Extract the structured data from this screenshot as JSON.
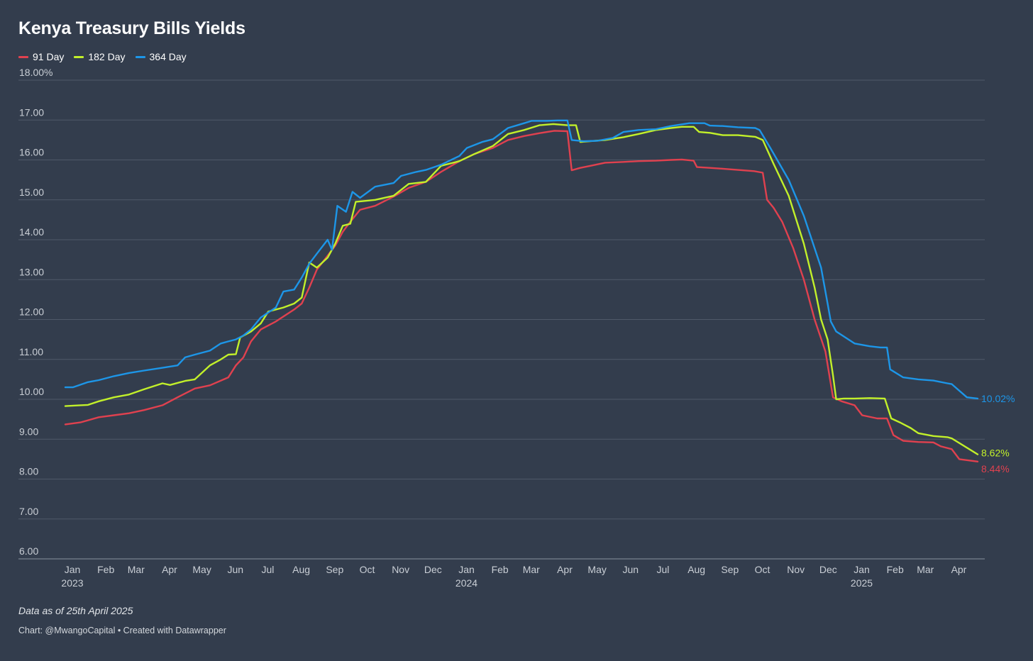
{
  "title": "Kenya Treasury Bills Yields",
  "note": "Data as of 25th April 2025",
  "credit": "Chart: @MwangoCapital • Created with Datawrapper",
  "chart_data": {
    "type": "line",
    "title": "Kenya Treasury Bills Yields",
    "xlabel": "",
    "ylabel": "",
    "ylim": [
      6,
      18
    ],
    "xlim": [
      "2023-01-01",
      "2025-04-25"
    ],
    "y_ticks": [
      "6.00",
      "7.00",
      "8.00",
      "9.00",
      "10.00",
      "11.00",
      "12.00",
      "13.00",
      "14.00",
      "15.00",
      "16.00",
      "17.00",
      "18.00%"
    ],
    "x_ticks": [
      {
        "date": "2023-01-01",
        "label": "Jan",
        "year": "2023"
      },
      {
        "date": "2023-02-01",
        "label": "Feb"
      },
      {
        "date": "2023-03-01",
        "label": "Mar"
      },
      {
        "date": "2023-04-01",
        "label": "Apr"
      },
      {
        "date": "2023-05-01",
        "label": "May"
      },
      {
        "date": "2023-06-01",
        "label": "Jun"
      },
      {
        "date": "2023-07-01",
        "label": "Jul"
      },
      {
        "date": "2023-08-01",
        "label": "Aug"
      },
      {
        "date": "2023-09-01",
        "label": "Sep"
      },
      {
        "date": "2023-10-01",
        "label": "Oct"
      },
      {
        "date": "2023-11-01",
        "label": "Nov"
      },
      {
        "date": "2023-12-01",
        "label": "Dec"
      },
      {
        "date": "2024-01-01",
        "label": "Jan",
        "year": "2024"
      },
      {
        "date": "2024-02-01",
        "label": "Feb"
      },
      {
        "date": "2024-03-01",
        "label": "Mar"
      },
      {
        "date": "2024-04-01",
        "label": "Apr"
      },
      {
        "date": "2024-05-01",
        "label": "May"
      },
      {
        "date": "2024-06-01",
        "label": "Jun"
      },
      {
        "date": "2024-07-01",
        "label": "Jul"
      },
      {
        "date": "2024-08-01",
        "label": "Aug"
      },
      {
        "date": "2024-09-01",
        "label": "Sep"
      },
      {
        "date": "2024-10-01",
        "label": "Oct"
      },
      {
        "date": "2024-11-01",
        "label": "Nov"
      },
      {
        "date": "2024-12-01",
        "label": "Dec"
      },
      {
        "date": "2025-01-01",
        "label": "Jan",
        "year": "2025"
      },
      {
        "date": "2025-02-01",
        "label": "Feb"
      },
      {
        "date": "2025-03-01",
        "label": "Mar"
      },
      {
        "date": "2025-04-01",
        "label": "Apr"
      }
    ],
    "grid": true,
    "legend": "top-left",
    "series": [
      {
        "name": "91 Day",
        "color": "#e0414f",
        "end_label": "8.44%",
        "points": [
          [
            "2023-01-01",
            9.37
          ],
          [
            "2023-01-15",
            9.42
          ],
          [
            "2023-02-01",
            9.55
          ],
          [
            "2023-02-15",
            9.6
          ],
          [
            "2023-03-01",
            9.65
          ],
          [
            "2023-03-15",
            9.73
          ],
          [
            "2023-04-01",
            9.85
          ],
          [
            "2023-04-15",
            10.05
          ],
          [
            "2023-05-01",
            10.27
          ],
          [
            "2023-05-15",
            10.35
          ],
          [
            "2023-06-01",
            10.55
          ],
          [
            "2023-06-08",
            10.85
          ],
          [
            "2023-06-15",
            11.05
          ],
          [
            "2023-06-22",
            11.45
          ],
          [
            "2023-07-01",
            11.75
          ],
          [
            "2023-07-15",
            11.95
          ],
          [
            "2023-08-01",
            12.25
          ],
          [
            "2023-08-08",
            12.4
          ],
          [
            "2023-08-15",
            12.8
          ],
          [
            "2023-08-22",
            13.25
          ],
          [
            "2023-09-01",
            13.6
          ],
          [
            "2023-09-08",
            13.85
          ],
          [
            "2023-09-15",
            14.2
          ],
          [
            "2023-09-22",
            14.45
          ],
          [
            "2023-10-01",
            14.75
          ],
          [
            "2023-10-15",
            14.85
          ],
          [
            "2023-11-01",
            15.08
          ],
          [
            "2023-11-15",
            15.3
          ],
          [
            "2023-12-01",
            15.45
          ],
          [
            "2023-12-15",
            15.7
          ],
          [
            "2024-01-01",
            15.97
          ],
          [
            "2024-01-15",
            16.15
          ],
          [
            "2024-02-01",
            16.3
          ],
          [
            "2024-02-15",
            16.5
          ],
          [
            "2024-03-01",
            16.6
          ],
          [
            "2024-03-15",
            16.67
          ],
          [
            "2024-03-29",
            16.73
          ],
          [
            "2024-04-10",
            16.72
          ],
          [
            "2024-04-14",
            15.74
          ],
          [
            "2024-04-22",
            15.8
          ],
          [
            "2024-05-01",
            15.85
          ],
          [
            "2024-05-15",
            15.93
          ],
          [
            "2024-06-01",
            15.95
          ],
          [
            "2024-06-15",
            15.97
          ],
          [
            "2024-07-01",
            15.98
          ],
          [
            "2024-07-15",
            16.0
          ],
          [
            "2024-07-25",
            16.01
          ],
          [
            "2024-08-05",
            15.98
          ],
          [
            "2024-08-08",
            15.82
          ],
          [
            "2024-08-20",
            15.8
          ],
          [
            "2024-09-01",
            15.78
          ],
          [
            "2024-09-15",
            15.75
          ],
          [
            "2024-09-30",
            15.72
          ],
          [
            "2024-10-08",
            15.68
          ],
          [
            "2024-10-12",
            15.0
          ],
          [
            "2024-10-18",
            14.8
          ],
          [
            "2024-10-26",
            14.45
          ],
          [
            "2024-11-05",
            13.8
          ],
          [
            "2024-11-15",
            13.0
          ],
          [
            "2024-11-25",
            12.0
          ],
          [
            "2024-12-05",
            11.2
          ],
          [
            "2024-12-12",
            10.05
          ],
          [
            "2024-12-20",
            9.95
          ],
          [
            "2025-01-01",
            9.85
          ],
          [
            "2025-01-08",
            9.6
          ],
          [
            "2025-01-22",
            9.52
          ],
          [
            "2025-01-31",
            9.52
          ],
          [
            "2025-02-06",
            9.1
          ],
          [
            "2025-02-15",
            8.96
          ],
          [
            "2025-03-01",
            8.93
          ],
          [
            "2025-03-15",
            8.92
          ],
          [
            "2025-03-22",
            8.82
          ],
          [
            "2025-04-01",
            8.75
          ],
          [
            "2025-04-08",
            8.5
          ],
          [
            "2025-04-25",
            8.44
          ]
        ]
      },
      {
        "name": "182 Day",
        "color": "#c2f02a",
        "end_label": "8.62%",
        "points": [
          [
            "2023-01-01",
            9.83
          ],
          [
            "2023-01-15",
            9.85
          ],
          [
            "2023-01-22",
            9.86
          ],
          [
            "2023-02-01",
            9.95
          ],
          [
            "2023-02-15",
            10.05
          ],
          [
            "2023-03-01",
            10.12
          ],
          [
            "2023-03-15",
            10.25
          ],
          [
            "2023-04-01",
            10.4
          ],
          [
            "2023-04-08",
            10.36
          ],
          [
            "2023-04-22",
            10.46
          ],
          [
            "2023-05-01",
            10.5
          ],
          [
            "2023-05-15",
            10.85
          ],
          [
            "2023-05-25",
            11.0
          ],
          [
            "2023-06-01",
            11.12
          ],
          [
            "2023-06-08",
            11.13
          ],
          [
            "2023-06-12",
            11.55
          ],
          [
            "2023-06-22",
            11.7
          ],
          [
            "2023-07-01",
            11.9
          ],
          [
            "2023-07-08",
            12.2
          ],
          [
            "2023-07-22",
            12.3
          ],
          [
            "2023-08-01",
            12.4
          ],
          [
            "2023-08-08",
            12.55
          ],
          [
            "2023-08-15",
            13.43
          ],
          [
            "2023-08-22",
            13.3
          ],
          [
            "2023-09-01",
            13.55
          ],
          [
            "2023-09-08",
            13.9
          ],
          [
            "2023-09-15",
            14.35
          ],
          [
            "2023-09-22",
            14.4
          ],
          [
            "2023-09-27",
            14.95
          ],
          [
            "2023-10-15",
            15.0
          ],
          [
            "2023-11-01",
            15.1
          ],
          [
            "2023-11-15",
            15.4
          ],
          [
            "2023-12-01",
            15.45
          ],
          [
            "2023-12-15",
            15.85
          ],
          [
            "2024-01-01",
            15.97
          ],
          [
            "2024-01-15",
            16.15
          ],
          [
            "2024-02-01",
            16.35
          ],
          [
            "2024-02-15",
            16.65
          ],
          [
            "2024-03-01",
            16.75
          ],
          [
            "2024-03-15",
            16.87
          ],
          [
            "2024-03-28",
            16.9
          ],
          [
            "2024-04-10",
            16.87
          ],
          [
            "2024-04-18",
            16.87
          ],
          [
            "2024-04-22",
            16.45
          ],
          [
            "2024-05-01",
            16.47
          ],
          [
            "2024-05-15",
            16.5
          ],
          [
            "2024-06-01",
            16.57
          ],
          [
            "2024-06-15",
            16.65
          ],
          [
            "2024-07-01",
            16.75
          ],
          [
            "2024-07-15",
            16.8
          ],
          [
            "2024-07-25",
            16.83
          ],
          [
            "2024-08-05",
            16.83
          ],
          [
            "2024-08-10",
            16.7
          ],
          [
            "2024-08-20",
            16.68
          ],
          [
            "2024-09-01",
            16.62
          ],
          [
            "2024-09-15",
            16.62
          ],
          [
            "2024-10-01",
            16.58
          ],
          [
            "2024-10-08",
            16.5
          ],
          [
            "2024-10-18",
            15.9
          ],
          [
            "2024-11-01",
            15.1
          ],
          [
            "2024-11-15",
            13.9
          ],
          [
            "2024-11-25",
            12.8
          ],
          [
            "2024-12-01",
            12.0
          ],
          [
            "2024-12-07",
            11.5
          ],
          [
            "2024-12-12",
            10.6
          ],
          [
            "2024-12-15",
            10.0
          ],
          [
            "2024-12-22",
            10.02
          ],
          [
            "2025-01-01",
            10.02
          ],
          [
            "2025-01-15",
            10.03
          ],
          [
            "2025-01-29",
            10.02
          ],
          [
            "2025-02-04",
            9.52
          ],
          [
            "2025-02-12",
            9.42
          ],
          [
            "2025-02-22",
            9.28
          ],
          [
            "2025-03-01",
            9.15
          ],
          [
            "2025-03-15",
            9.08
          ],
          [
            "2025-03-28",
            9.05
          ],
          [
            "2025-04-01",
            9.02
          ],
          [
            "2025-04-25",
            8.62
          ]
        ]
      },
      {
        "name": "364 Day",
        "color": "#1d96e8",
        "end_label": "10.02%",
        "points": [
          [
            "2023-01-01",
            10.3
          ],
          [
            "2023-01-08",
            10.3
          ],
          [
            "2023-01-22",
            10.43
          ],
          [
            "2023-02-01",
            10.48
          ],
          [
            "2023-02-15",
            10.58
          ],
          [
            "2023-03-01",
            10.66
          ],
          [
            "2023-03-15",
            10.72
          ],
          [
            "2023-04-01",
            10.79
          ],
          [
            "2023-04-15",
            10.85
          ],
          [
            "2023-04-22",
            11.05
          ],
          [
            "2023-05-01",
            11.12
          ],
          [
            "2023-05-15",
            11.22
          ],
          [
            "2023-05-25",
            11.4
          ],
          [
            "2023-06-01",
            11.45
          ],
          [
            "2023-06-08",
            11.5
          ],
          [
            "2023-06-15",
            11.6
          ],
          [
            "2023-06-22",
            11.75
          ],
          [
            "2023-07-01",
            12.05
          ],
          [
            "2023-07-15",
            12.3
          ],
          [
            "2023-07-22",
            12.7
          ],
          [
            "2023-08-01",
            12.75
          ],
          [
            "2023-08-08",
            13.05
          ],
          [
            "2023-08-15",
            13.4
          ],
          [
            "2023-08-22",
            13.65
          ],
          [
            "2023-09-01",
            14.0
          ],
          [
            "2023-09-05",
            13.75
          ],
          [
            "2023-09-10",
            14.85
          ],
          [
            "2023-09-18",
            14.7
          ],
          [
            "2023-09-24",
            15.2
          ],
          [
            "2023-10-01",
            15.05
          ],
          [
            "2023-10-15",
            15.33
          ],
          [
            "2023-11-01",
            15.42
          ],
          [
            "2023-11-08",
            15.6
          ],
          [
            "2023-11-22",
            15.7
          ],
          [
            "2023-12-01",
            15.75
          ],
          [
            "2023-12-15",
            15.88
          ],
          [
            "2024-01-01",
            16.1
          ],
          [
            "2024-01-08",
            16.3
          ],
          [
            "2024-01-22",
            16.45
          ],
          [
            "2024-02-01",
            16.52
          ],
          [
            "2024-02-15",
            16.8
          ],
          [
            "2024-03-01",
            16.92
          ],
          [
            "2024-03-08",
            16.98
          ],
          [
            "2024-03-22",
            16.98
          ],
          [
            "2024-04-01",
            16.99
          ],
          [
            "2024-04-10",
            16.99
          ],
          [
            "2024-04-14",
            16.5
          ],
          [
            "2024-04-25",
            16.47
          ],
          [
            "2024-05-08",
            16.48
          ],
          [
            "2024-05-22",
            16.55
          ],
          [
            "2024-06-01",
            16.7
          ],
          [
            "2024-06-15",
            16.75
          ],
          [
            "2024-07-01",
            16.77
          ],
          [
            "2024-07-15",
            16.85
          ],
          [
            "2024-08-01",
            16.92
          ],
          [
            "2024-08-15",
            16.92
          ],
          [
            "2024-08-20",
            16.86
          ],
          [
            "2024-09-01",
            16.85
          ],
          [
            "2024-09-15",
            16.82
          ],
          [
            "2024-10-01",
            16.8
          ],
          [
            "2024-10-05",
            16.75
          ],
          [
            "2024-10-15",
            16.3
          ],
          [
            "2024-11-01",
            15.5
          ],
          [
            "2024-11-15",
            14.6
          ],
          [
            "2024-12-01",
            13.3
          ],
          [
            "2024-12-07",
            12.4
          ],
          [
            "2024-12-10",
            11.95
          ],
          [
            "2024-12-15",
            11.7
          ],
          [
            "2025-01-01",
            11.4
          ],
          [
            "2025-01-15",
            11.33
          ],
          [
            "2025-01-25",
            11.3
          ],
          [
            "2025-01-31",
            11.3
          ],
          [
            "2025-02-03",
            10.75
          ],
          [
            "2025-02-15",
            10.55
          ],
          [
            "2025-03-01",
            10.5
          ],
          [
            "2025-03-15",
            10.47
          ],
          [
            "2025-03-28",
            10.4
          ],
          [
            "2025-04-01",
            10.38
          ],
          [
            "2025-04-15",
            10.05
          ],
          [
            "2025-04-25",
            10.02
          ]
        ]
      }
    ]
  }
}
